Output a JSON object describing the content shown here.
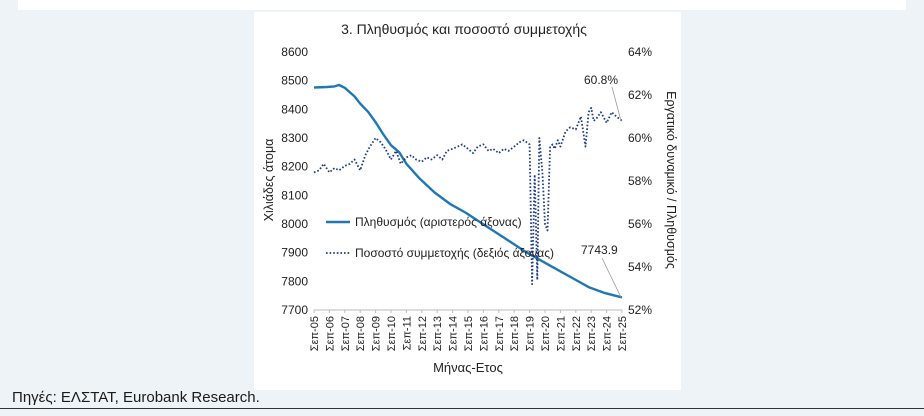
{
  "source_note": "Πηγές: ΕΛΣΤΑΤ, Eurobank Research.",
  "colors": {
    "population": "#1f77b4",
    "participation": "#1f3a8a",
    "background": "#eef3f7"
  },
  "chart_data": {
    "type": "line",
    "title": "3. Πληθυσμός και ποσοστό συμμετοχής",
    "xlabel": "Μήνας-Ετος",
    "ylabel_left": "Χιλιάδες άτομα",
    "ylabel_right": "Εργατικό δυναμικό / Πληθυσμός",
    "y_left": {
      "min": 7700,
      "max": 8600,
      "ticks": [
        "7700",
        "7800",
        "7900",
        "8000",
        "8100",
        "8200",
        "8300",
        "8400",
        "8500",
        "8600"
      ]
    },
    "y_right": {
      "min": 52,
      "max": 64,
      "ticks": [
        "52%",
        "54%",
        "56%",
        "58%",
        "60%",
        "62%",
        "64%"
      ]
    },
    "x_ticks": [
      "Σεπ-05",
      "Σεπ-06",
      "Σεπ-07",
      "Σεπ-08",
      "Σεπ-09",
      "Σεπ-10",
      "Σεπ-11",
      "Σεπ-12",
      "Σεπ-13",
      "Σεπ-14",
      "Σεπ-15",
      "Σεπ-16",
      "Σεπ-17",
      "Σεπ-18",
      "Σεπ-19",
      "Σεπ-20",
      "Σεπ-21",
      "Σεπ-22",
      "Σεπ-23",
      "Σεπ-24",
      "Σεπ-25"
    ],
    "legend_position": "center-left",
    "series": [
      {
        "name": "Πληθυσμός (αριστερός άξονας)",
        "axis": "left",
        "style": "solid",
        "x": [
          2005.67,
          2006.5,
          2007.0,
          2007.3,
          2007.67,
          2008.3,
          2008.67,
          2009.2,
          2009.67,
          2010.2,
          2010.67,
          2011.2,
          2011.67,
          2012.5,
          2013.5,
          2014.5,
          2015.5,
          2016.5,
          2017.5,
          2018.5,
          2019.5,
          2020.5,
          2021.5,
          2022.5,
          2023.5,
          2024.5,
          2025.67
        ],
        "values": [
          8476,
          8478,
          8480,
          8485,
          8475,
          8445,
          8420,
          8390,
          8355,
          8310,
          8275,
          8250,
          8210,
          8160,
          8110,
          8070,
          8040,
          8005,
          7970,
          7935,
          7900,
          7870,
          7840,
          7810,
          7780,
          7760,
          7743.9
        ]
      },
      {
        "name": "Ποσοστό συμμετοχής (δεξιός άξονας)",
        "axis": "right",
        "style": "dotted",
        "x": [
          2005.67,
          2006.0,
          2006.3,
          2006.67,
          2007.0,
          2007.3,
          2007.67,
          2008.0,
          2008.3,
          2008.67,
          2009.0,
          2009.3,
          2009.67,
          2010.0,
          2010.3,
          2010.67,
          2011.0,
          2011.3,
          2011.67,
          2012.0,
          2012.3,
          2012.67,
          2013.0,
          2013.3,
          2013.67,
          2014.0,
          2014.3,
          2014.67,
          2015.0,
          2015.3,
          2015.67,
          2016.0,
          2016.3,
          2016.67,
          2017.0,
          2017.3,
          2017.67,
          2018.0,
          2018.3,
          2018.67,
          2019.0,
          2019.3,
          2019.67,
          2019.83,
          2020.0,
          2020.17,
          2020.3,
          2020.5,
          2020.67,
          2020.83,
          2021.0,
          2021.17,
          2021.3,
          2021.5,
          2021.67,
          2022.0,
          2022.3,
          2022.67,
          2023.0,
          2023.3,
          2023.5,
          2023.67,
          2023.83,
          2024.0,
          2024.3,
          2024.67,
          2025.0,
          2025.3,
          2025.67
        ],
        "values": [
          58.4,
          58.5,
          58.8,
          58.4,
          58.6,
          58.5,
          58.7,
          58.8,
          59.0,
          58.5,
          59.2,
          59.6,
          60.0,
          59.8,
          59.5,
          59.0,
          59.4,
          58.8,
          59.1,
          59.2,
          59.0,
          58.9,
          59.1,
          59.0,
          59.2,
          59.0,
          59.4,
          59.5,
          59.6,
          59.7,
          59.5,
          59.3,
          59.6,
          59.7,
          59.4,
          59.5,
          59.3,
          59.5,
          59.4,
          59.6,
          59.8,
          59.9,
          59.7,
          53.2,
          58.3,
          53.4,
          60.0,
          58.4,
          56.0,
          55.7,
          59.6,
          59.7,
          59.5,
          59.9,
          59.6,
          60.3,
          60.5,
          60.4,
          61.0,
          59.6,
          61.2,
          61.4,
          60.8,
          60.9,
          61.2,
          60.7,
          61.2,
          61.0,
          60.8
        ]
      }
    ],
    "annotations": [
      {
        "text": "60.8%",
        "x": 2025.67,
        "y": 60.8,
        "axis": "right"
      },
      {
        "text": "7743.9",
        "x": 2025.67,
        "y": 7743.9,
        "axis": "left"
      }
    ]
  }
}
